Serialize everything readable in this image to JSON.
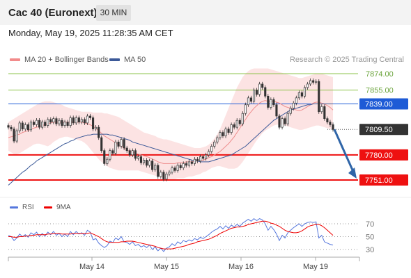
{
  "header": {
    "title": "Cac 40 (Euronext)",
    "timeframe": "30 MIN"
  },
  "datetime": "Monday, May 19, 2025 11:28:35 AM CET",
  "legend": {
    "ma20_label": "MA 20 + Bollinger Bands",
    "ma20_color": "#f28b8b",
    "ma50_label": "MA 50",
    "ma50_color": "#3b5998"
  },
  "credit": "Research © 2025 Trading Central",
  "rsi_legend": {
    "rsi_label": "RSI",
    "rsi_color": "#5577dd",
    "ma_label": "9MA",
    "ma_color": "#ee0000"
  },
  "chart_data": [
    {
      "type": "candlestick",
      "title": "Cac 40 (Euronext)",
      "interval": "30 MIN",
      "ylim": [
        7740,
        7884
      ],
      "x_tick_labels": [
        "May 14",
        "May 15",
        "May 16",
        "May 19"
      ],
      "price_levels": [
        {
          "value": 7874.0,
          "label": "7874.00",
          "color": "#8bc34a",
          "kind": "resistance"
        },
        {
          "value": 7855.0,
          "label": "7855.00",
          "color": "#8bc34a",
          "kind": "resistance"
        },
        {
          "value": 7839.0,
          "label": "7839.00",
          "color": "#1e5bd6",
          "kind": "pivot"
        },
        {
          "value": 7809.5,
          "label": "7809.50",
          "color": "#333333",
          "kind": "last"
        },
        {
          "value": 7780.0,
          "label": "7780.00",
          "color": "#ee1111",
          "kind": "support"
        },
        {
          "value": 7751.0,
          "label": "7751.00",
          "color": "#ee1111",
          "kind": "support"
        }
      ],
      "forecast_arrow": {
        "from": 7809.5,
        "to": 7751.0,
        "color": "#2f65a8"
      },
      "close_series": [
        7812,
        7810,
        7796,
        7808,
        7817,
        7810,
        7815,
        7809,
        7818,
        7815,
        7820,
        7812,
        7818,
        7814,
        7821,
        7818,
        7822,
        7816,
        7820,
        7814,
        7818,
        7814,
        7823,
        7817,
        7823,
        7818,
        7821,
        7817,
        7825,
        7823,
        7810,
        7812,
        7800,
        7785,
        7770,
        7775,
        7785,
        7782,
        7795,
        7790,
        7798,
        7788,
        7785,
        7780,
        7785,
        7776,
        7778,
        7771,
        7774,
        7768,
        7773,
        7763,
        7768,
        7755,
        7760,
        7752,
        7758,
        7760,
        7765,
        7762,
        7768,
        7765,
        7770,
        7768,
        7772,
        7770,
        7775,
        7773,
        7778,
        7776,
        7780,
        7784,
        7790,
        7795,
        7800,
        7806,
        7802,
        7810,
        7806,
        7815,
        7812,
        7820,
        7816,
        7828,
        7838,
        7846,
        7842,
        7855,
        7850,
        7862,
        7858,
        7848,
        7835,
        7844,
        7838,
        7825,
        7812,
        7822,
        7816,
        7828,
        7834,
        7840,
        7846,
        7852,
        7848,
        7858,
        7862,
        7866,
        7864,
        7865,
        7830,
        7836,
        7822,
        7818,
        7815,
        7809.5
      ],
      "ma20_series": [
        7800,
        7801,
        7802,
        7803,
        7804,
        7806,
        7807,
        7808,
        7810,
        7811,
        7812,
        7813,
        7814,
        7815,
        7816,
        7817,
        7818,
        7818,
        7818,
        7818,
        7818,
        7818,
        7818,
        7818,
        7818,
        7818,
        7818,
        7817,
        7816,
        7815,
        7813,
        7811,
        7808,
        7805,
        7802,
        7800,
        7798,
        7796,
        7794,
        7792,
        7790,
        7788,
        7786,
        7784,
        7783,
        7782,
        7781,
        7780,
        7779,
        7778,
        7777,
        7775,
        7774,
        7772,
        7771,
        7770,
        7770,
        7770,
        7770,
        7770,
        7771,
        7771,
        7771,
        7772,
        7772,
        7772,
        7773,
        7773,
        7773,
        7774,
        7775,
        7777,
        7778,
        7780,
        7782,
        7784,
        7787,
        7790,
        7793,
        7797,
        7801,
        7806,
        7811,
        7816,
        7821,
        7826,
        7830,
        7834,
        7837,
        7840,
        7842,
        7843,
        7842,
        7842,
        7842,
        7841,
        7840,
        7838,
        7836,
        7835,
        7834,
        7833,
        7832,
        7831,
        7832,
        7834,
        7836,
        7838,
        7840,
        7841,
        7841,
        7840,
        7839,
        7837,
        7835,
        7832
      ],
      "bb_upper": [
        7818,
        7820,
        7822,
        7824,
        7826,
        7828,
        7830,
        7832,
        7834,
        7836,
        7838,
        7840,
        7841,
        7842,
        7842,
        7842,
        7841,
        7840,
        7839,
        7838,
        7836,
        7835,
        7834,
        7833,
        7832,
        7831,
        7830,
        7830,
        7830,
        7830,
        7829,
        7829,
        7829,
        7829,
        7828,
        7828,
        7827,
        7826,
        7825,
        7824,
        7822,
        7820,
        7818,
        7816,
        7814,
        7812,
        7810,
        7808,
        7806,
        7805,
        7804,
        7803,
        7802,
        7800,
        7799,
        7798,
        7798,
        7797,
        7796,
        7795,
        7794,
        7793,
        7792,
        7791,
        7790,
        7789,
        7788,
        7788,
        7788,
        7789,
        7790,
        7792,
        7795,
        7799,
        7804,
        7810,
        7818,
        7826,
        7834,
        7842,
        7850,
        7858,
        7864,
        7870,
        7874,
        7877,
        7879,
        7880,
        7880,
        7880,
        7880,
        7880,
        7880,
        7879,
        7878,
        7877,
        7876,
        7875,
        7874,
        7873,
        7872,
        7871,
        7870,
        7869,
        7869,
        7870,
        7871,
        7872,
        7873,
        7874,
        7874,
        7874,
        7873,
        7872,
        7871,
        7870
      ],
      "bb_lower": [
        7785,
        7783,
        7781,
        7781,
        7782,
        7784,
        7786,
        7788,
        7790,
        7792,
        7793,
        7793,
        7792,
        7791,
        7790,
        7792,
        7795,
        7797,
        7799,
        7800,
        7801,
        7801,
        7800,
        7799,
        7798,
        7797,
        7796,
        7794,
        7791,
        7787,
        7783,
        7779,
        7775,
        7772,
        7769,
        7767,
        7765,
        7764,
        7763,
        7762,
        7762,
        7762,
        7762,
        7762,
        7762,
        7762,
        7762,
        7761,
        7760,
        7759,
        7758,
        7757,
        7756,
        7755,
        7754,
        7753,
        7752,
        7752,
        7752,
        7752,
        7753,
        7753,
        7753,
        7754,
        7755,
        7755,
        7756,
        7757,
        7758,
        7760,
        7761,
        7763,
        7765,
        7766,
        7767,
        7767,
        7766,
        7765,
        7764,
        7764,
        7764,
        7765,
        7768,
        7772,
        7777,
        7782,
        7787,
        7792,
        7797,
        7801,
        7805,
        7808,
        7810,
        7812,
        7814,
        7815,
        7815,
        7815,
        7814,
        7813,
        7812,
        7811,
        7810,
        7809,
        7809,
        7810,
        7811,
        7812,
        7813,
        7814,
        7814,
        7813,
        7812,
        7811,
        7810,
        7809
      ],
      "ma50_series": [
        7745,
        7748,
        7751,
        7754,
        7757,
        7760,
        7762,
        7765,
        7768,
        7770,
        7773,
        7775,
        7777,
        7779,
        7781,
        7783,
        7785,
        7787,
        7789,
        7791,
        7793,
        7794,
        7796,
        7797,
        7799,
        7800,
        7801,
        7802,
        7803,
        7803,
        7804,
        7804,
        7804,
        7804,
        7804,
        7804,
        7803,
        7803,
        7802,
        7801,
        7800,
        7799,
        7798,
        7797,
        7795,
        7794,
        7793,
        7792,
        7791,
        7790,
        7789,
        7788,
        7787,
        7786,
        7785,
        7784,
        7783,
        7782,
        7781,
        7780,
        7779,
        7778,
        7777,
        7776,
        7775,
        7774,
        7773,
        7773,
        7772,
        7772,
        7772,
        7772,
        7773,
        7774,
        7775,
        7776,
        7777,
        7778,
        7779,
        7780,
        7782,
        7784,
        7786,
        7788,
        7790,
        7793,
        7796,
        7799,
        7802,
        7805,
        7808,
        7811,
        7814,
        7817,
        7820,
        7822,
        7824,
        7826,
        7828,
        7830,
        7832,
        7833,
        7834,
        7835,
        7836,
        7837,
        7838,
        7838,
        7839,
        7839,
        7839,
        7839,
        7839,
        7839,
        7839,
        7839
      ]
    },
    {
      "type": "line",
      "title": "RSI",
      "ylim": [
        20,
        80
      ],
      "y_ticks": [
        70,
        50,
        30
      ],
      "y_tick_labels": [
        "70",
        "50",
        "30"
      ],
      "series": [
        {
          "name": "RSI",
          "color": "#5577dd",
          "values": [
            52,
            50,
            44,
            48,
            54,
            50,
            53,
            49,
            56,
            53,
            57,
            50,
            55,
            51,
            57,
            53,
            58,
            52,
            55,
            50,
            54,
            50,
            58,
            53,
            58,
            54,
            56,
            52,
            60,
            57,
            45,
            47,
            40,
            36,
            33,
            36,
            43,
            41,
            48,
            45,
            50,
            42,
            41,
            38,
            42,
            36,
            38,
            34,
            36,
            33,
            37,
            30,
            34,
            28,
            32,
            27,
            32,
            34,
            39,
            36,
            42,
            39,
            44,
            42,
            45,
            43,
            47,
            45,
            49,
            47,
            50,
            53,
            57,
            60,
            62,
            66,
            62,
            67,
            63,
            68,
            65,
            69,
            66,
            71,
            74,
            77,
            74,
            78,
            75,
            78,
            76,
            70,
            60,
            66,
            61,
            54,
            44,
            52,
            48,
            56,
            60,
            64,
            67,
            70,
            66,
            70,
            72,
            73,
            72,
            73,
            48,
            52,
            42,
            40,
            38,
            37
          ]
        },
        {
          "name": "9MA",
          "color": "#ee0000",
          "values": [
            50,
            50,
            49,
            49,
            50,
            50,
            51,
            51,
            52,
            52,
            53,
            53,
            53,
            53,
            54,
            54,
            55,
            55,
            55,
            54,
            54,
            54,
            54,
            55,
            55,
            55,
            55,
            55,
            55,
            56,
            54,
            52,
            50,
            47,
            44,
            42,
            41,
            41,
            41,
            41,
            42,
            42,
            43,
            43,
            43,
            42,
            41,
            40,
            39,
            38,
            37,
            36,
            35,
            33,
            32,
            31,
            31,
            31,
            31,
            32,
            33,
            34,
            35,
            36,
            38,
            39,
            40,
            42,
            43,
            44,
            45,
            46,
            48,
            50,
            52,
            55,
            57,
            59,
            61,
            63,
            64,
            65,
            65,
            66,
            67,
            69,
            70,
            71,
            72,
            73,
            74,
            74,
            73,
            71,
            70,
            68,
            66,
            63,
            60,
            58,
            57,
            56,
            56,
            57,
            59,
            62,
            65,
            67,
            68,
            69,
            69,
            67,
            64,
            60,
            56,
            52
          ]
        }
      ]
    }
  ]
}
